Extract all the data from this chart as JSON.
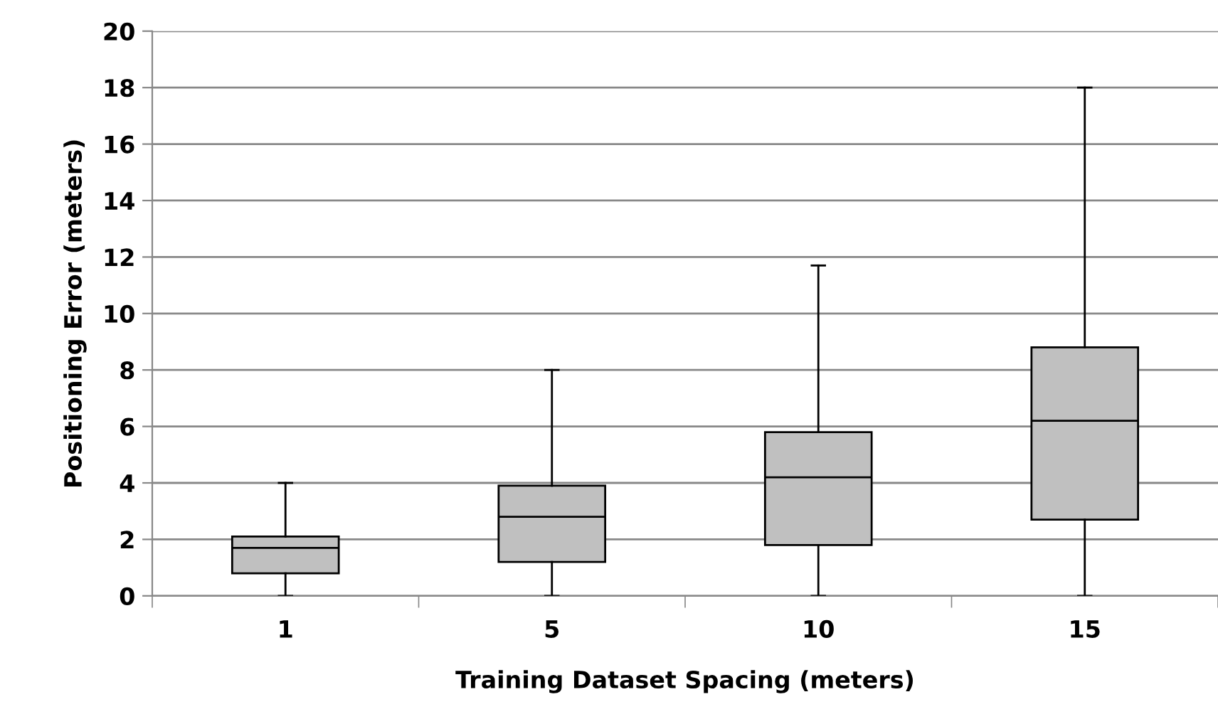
{
  "chart_data": {
    "type": "box",
    "xlabel": "Training Dataset Spacing (meters)",
    "ylabel": "Positioning Error (meters)",
    "categories": [
      "1",
      "5",
      "10",
      "15"
    ],
    "boxes": [
      {
        "low": 0,
        "q1": 0.8,
        "median": 1.7,
        "q3": 2.1,
        "high": 4.0
      },
      {
        "low": 0,
        "q1": 1.2,
        "median": 2.8,
        "q3": 3.9,
        "high": 8.0
      },
      {
        "low": 0,
        "q1": 1.8,
        "median": 4.2,
        "q3": 5.8,
        "high": 11.7
      },
      {
        "low": 0,
        "q1": 2.7,
        "median": 6.2,
        "q3": 8.8,
        "high": 18.0
      }
    ],
    "color": "#c0c0c0",
    "ylim": [
      0,
      20
    ],
    "yticks": [
      0,
      2,
      4,
      6,
      8,
      10,
      12,
      14,
      16,
      18,
      20
    ],
    "grid": "y"
  }
}
